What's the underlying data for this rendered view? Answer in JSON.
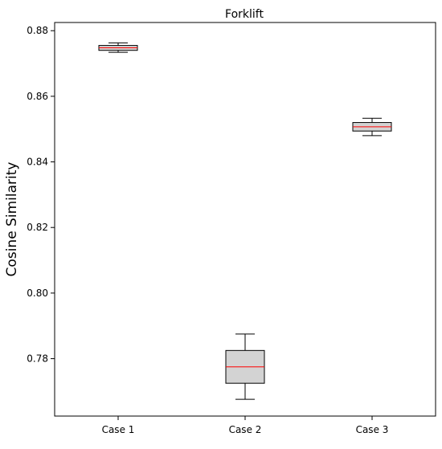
{
  "chart_data": {
    "type": "boxplot",
    "title": "Forklift",
    "xlabel": "",
    "ylabel": "Cosine Similarity",
    "ylim": [
      0.7625,
      0.8825
    ],
    "yticks": [
      0.78,
      0.8,
      0.82,
      0.84,
      0.86,
      0.88
    ],
    "ytick_labels": [
      "0.78",
      "0.80",
      "0.82",
      "0.84",
      "0.86",
      "0.88"
    ],
    "categories": [
      "Case 1",
      "Case 2",
      "Case 3"
    ],
    "boxes": [
      {
        "category": "Case 1",
        "whisker_low": 0.8734,
        "q1": 0.874,
        "median": 0.8748,
        "q3": 0.8755,
        "whisker_high": 0.8763
      },
      {
        "category": "Case 2",
        "whisker_low": 0.7676,
        "q1": 0.7725,
        "median": 0.7775,
        "q3": 0.7825,
        "whisker_high": 0.7875
      },
      {
        "category": "Case 3",
        "whisker_low": 0.848,
        "q1": 0.8494,
        "median": 0.8507,
        "q3": 0.852,
        "whisker_high": 0.8533
      }
    ],
    "grid": false,
    "colors": {
      "box_fill": "#d3d3d3",
      "box_edge": "#000000",
      "median": "#ff0000",
      "axes": "#000000"
    }
  }
}
